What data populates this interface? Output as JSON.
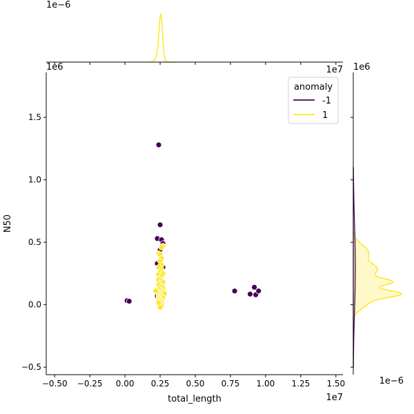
{
  "chart_data": {
    "type": "scatter",
    "xlabel": "total_length",
    "ylabel": "N50",
    "x_multiplier_label": "1e7",
    "y_multiplier_label": "1e6",
    "xlim": [
      -0.56,
      1.55
    ],
    "ylim": [
      -0.56,
      1.86
    ],
    "x_ticks": [
      -0.5,
      -0.25,
      0.0,
      0.25,
      0.5,
      0.75,
      1.0,
      1.25,
      1.5
    ],
    "x_tick_labels": [
      "−0.50",
      "−0.25",
      "0.00",
      "0.25",
      "0.50",
      "0.75",
      "1.00",
      "1.25",
      "1.50"
    ],
    "y_ticks": [
      -0.5,
      0.0,
      0.5,
      1.0,
      1.5
    ],
    "y_tick_labels": [
      "−0.5",
      "0.0",
      "0.5",
      "1.0",
      "1.5"
    ],
    "grid": false,
    "legend": {
      "title": "anomaly",
      "placement": "top-right",
      "entries": [
        {
          "label": "-1",
          "color": "#440154"
        },
        {
          "label": "1",
          "color": "#fde725"
        }
      ]
    },
    "series": [
      {
        "name": "-1",
        "color": "#440154",
        "points": [
          [
            0.24,
            1.28
          ],
          [
            0.25,
            0.64
          ],
          [
            0.23,
            0.53
          ],
          [
            0.26,
            0.52
          ],
          [
            0.25,
            0.44
          ],
          [
            0.27,
            0.49
          ],
          [
            0.23,
            0.33
          ],
          [
            0.27,
            0.3
          ],
          [
            0.24,
            0.3
          ],
          [
            0.25,
            0.22
          ],
          [
            0.24,
            0.1
          ],
          [
            0.23,
            0.07
          ],
          [
            0.24,
            0.04
          ],
          [
            0.015,
            0.033
          ],
          [
            0.03,
            0.028
          ],
          [
            0.78,
            0.11
          ],
          [
            0.92,
            0.14
          ],
          [
            0.89,
            0.085
          ],
          [
            0.93,
            0.08
          ],
          [
            0.95,
            0.11
          ],
          [
            0.26,
            0.16
          ],
          [
            0.25,
            0.01
          ]
        ]
      },
      {
        "name": "1",
        "color": "#fde725",
        "points": [
          [
            0.27,
            0.47
          ],
          [
            0.26,
            0.46
          ],
          [
            0.24,
            0.41
          ],
          [
            0.25,
            0.4
          ],
          [
            0.26,
            0.37
          ],
          [
            0.25,
            0.35
          ],
          [
            0.26,
            0.32
          ],
          [
            0.24,
            0.3
          ],
          [
            0.26,
            0.28
          ],
          [
            0.25,
            0.26
          ],
          [
            0.27,
            0.25
          ],
          [
            0.24,
            0.24
          ],
          [
            0.26,
            0.23
          ],
          [
            0.25,
            0.21
          ],
          [
            0.24,
            0.2
          ],
          [
            0.26,
            0.19
          ],
          [
            0.27,
            0.18
          ],
          [
            0.25,
            0.17
          ],
          [
            0.24,
            0.16
          ],
          [
            0.26,
            0.15
          ],
          [
            0.25,
            0.14
          ],
          [
            0.27,
            0.13
          ],
          [
            0.24,
            0.12
          ],
          [
            0.26,
            0.115
          ],
          [
            0.25,
            0.11
          ],
          [
            0.23,
            0.105
          ],
          [
            0.27,
            0.1
          ],
          [
            0.26,
            0.095
          ],
          [
            0.24,
            0.09
          ],
          [
            0.25,
            0.085
          ],
          [
            0.27,
            0.08
          ],
          [
            0.22,
            0.11
          ],
          [
            0.28,
            0.09
          ],
          [
            0.26,
            0.075
          ],
          [
            0.24,
            0.07
          ],
          [
            0.25,
            0.065
          ],
          [
            0.26,
            0.06
          ],
          [
            0.27,
            0.055
          ],
          [
            0.24,
            0.05
          ],
          [
            0.25,
            0.045
          ],
          [
            0.26,
            0.04
          ],
          [
            0.25,
            0.035
          ],
          [
            0.24,
            0.03
          ],
          [
            0.26,
            0.025
          ],
          [
            0.25,
            0.02
          ],
          [
            0.26,
            0.01
          ],
          [
            0.25,
            0.005
          ],
          [
            0.26,
            -0.01
          ],
          [
            0.25,
            -0.02
          ],
          [
            0.24,
            0.015
          ]
        ]
      }
    ],
    "marginal_top": {
      "multiplier_label": "1e−6"
    },
    "marginal_right": {
      "multiplier_label": "1e6",
      "bottom_multiplier_label": "1e−6"
    }
  }
}
